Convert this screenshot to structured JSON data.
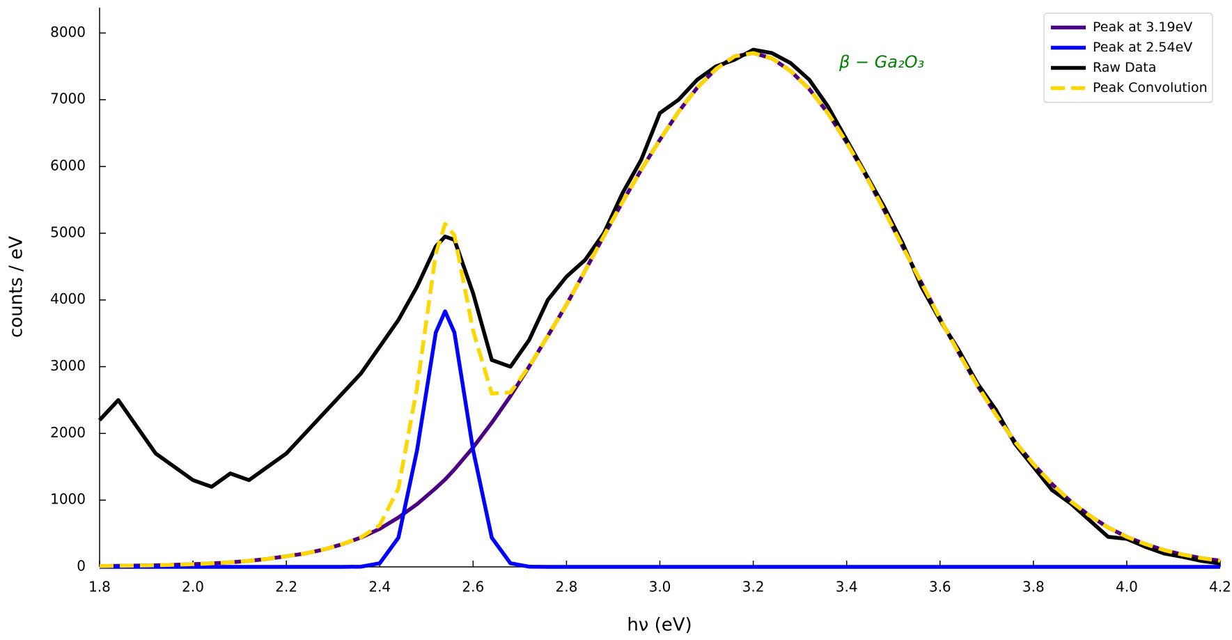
{
  "chart_data": {
    "type": "line",
    "x_label": "hν (eV)",
    "y_label": "counts / eV",
    "annotation": "β − Ga₂O₃",
    "legend": "upper right",
    "xlim": [
      1.8,
      4.2
    ],
    "ylim": [
      0,
      8380
    ],
    "xticks": [
      1.8,
      {
        "value": 2,
        "label": "2.0"
      },
      2.2,
      2.4,
      2.6,
      2.8,
      {
        "value": 3,
        "label": "3.0"
      },
      3.2,
      3.4,
      3.6,
      3.8,
      {
        "value": 4,
        "label": "4.0"
      },
      4.2
    ],
    "yticks": [
      0,
      1000,
      2000,
      3000,
      4000,
      5000,
      6000,
      7000,
      8000
    ],
    "x": [
      1.8,
      1.84,
      1.88,
      1.92,
      1.96,
      2.0,
      2.04,
      2.08,
      2.12,
      2.16,
      2.2,
      2.24,
      2.28,
      2.32,
      2.36,
      2.4,
      2.44,
      2.48,
      2.52,
      2.54,
      2.56,
      2.6,
      2.64,
      2.68,
      2.72,
      2.76,
      2.8,
      2.84,
      2.88,
      2.92,
      2.96,
      3.0,
      3.04,
      3.08,
      3.12,
      3.16,
      3.2,
      3.24,
      3.28,
      3.32,
      3.36,
      3.4,
      3.44,
      3.48,
      3.52,
      3.56,
      3.6,
      3.64,
      3.68,
      3.72,
      3.76,
      3.8,
      3.84,
      3.88,
      3.92,
      3.96,
      4.0,
      4.04,
      4.08,
      4.12,
      4.16,
      4.2
    ],
    "series": [
      {
        "name": "Peak at 3.19eV",
        "color": "#4b0082",
        "linestyle": "solid",
        "values": [
          12,
          15,
          19,
          24,
          31,
          40,
          52,
          68,
          90,
          120,
          160,
          200,
          260,
          340,
          440,
          570,
          740,
          940,
          1180,
          1310,
          1460,
          1790,
          2160,
          2560,
          3000,
          3460,
          3930,
          4440,
          4960,
          5470,
          5950,
          6400,
          6820,
          7180,
          7460,
          7650,
          7700,
          7620,
          7430,
          7160,
          6800,
          6360,
          5880,
          5350,
          4800,
          4260,
          3720,
          3210,
          2720,
          2280,
          1880,
          1540,
          1240,
          980,
          770,
          590,
          450,
          340,
          250,
          183,
          131,
          93
        ]
      },
      {
        "name": "Peak at 2.54eV",
        "color": "#0000ff",
        "linestyle": "solid",
        "values": [
          0,
          0,
          0,
          0,
          0,
          0,
          0,
          0,
          0,
          0,
          0,
          0,
          0,
          0,
          3,
          54,
          437,
          1750,
          3510,
          3830,
          3510,
          1750,
          437,
          54,
          3,
          0,
          0,
          0,
          0,
          0,
          0,
          0,
          0,
          0,
          0,
          0,
          0,
          0,
          0,
          0,
          0,
          0,
          0,
          0,
          0,
          0,
          0,
          0,
          0,
          0,
          0,
          0,
          0,
          0,
          0,
          0,
          0,
          0,
          0,
          0,
          0,
          0
        ]
      },
      {
        "name": "Raw Data",
        "color": "#000000",
        "linestyle": "solid",
        "values": [
          2200,
          2500,
          2100,
          1700,
          1500,
          1300,
          1200,
          1400,
          1300,
          1500,
          1700,
          2000,
          2300,
          2600,
          2900,
          3300,
          3700,
          4200,
          4800,
          4950,
          4900,
          4100,
          3100,
          3000,
          3400,
          4000,
          4350,
          4600,
          5000,
          5600,
          6100,
          6800,
          7000,
          7300,
          7500,
          7600,
          7750,
          7700,
          7550,
          7300,
          6900,
          6400,
          5900,
          5400,
          4850,
          4200,
          3700,
          3250,
          2750,
          2350,
          1850,
          1500,
          1150,
          950,
          700,
          450,
          420,
          300,
          200,
          150,
          90,
          50
        ]
      },
      {
        "name": "Peak Convolution",
        "color": "#ffd700",
        "linestyle": "dashed",
        "values": [
          12,
          15,
          19,
          24,
          31,
          40,
          52,
          68,
          90,
          120,
          160,
          200,
          260,
          340,
          443,
          624,
          1177,
          2690,
          4690,
          5140,
          4970,
          3540,
          2597,
          2614,
          3003,
          3460,
          3930,
          4440,
          4960,
          5470,
          5950,
          6400,
          6820,
          7180,
          7460,
          7650,
          7700,
          7620,
          7430,
          7160,
          6800,
          6360,
          5880,
          5350,
          4800,
          4260,
          3720,
          3210,
          2720,
          2280,
          1880,
          1540,
          1240,
          980,
          770,
          590,
          450,
          340,
          250,
          183,
          131,
          93
        ]
      }
    ]
  }
}
